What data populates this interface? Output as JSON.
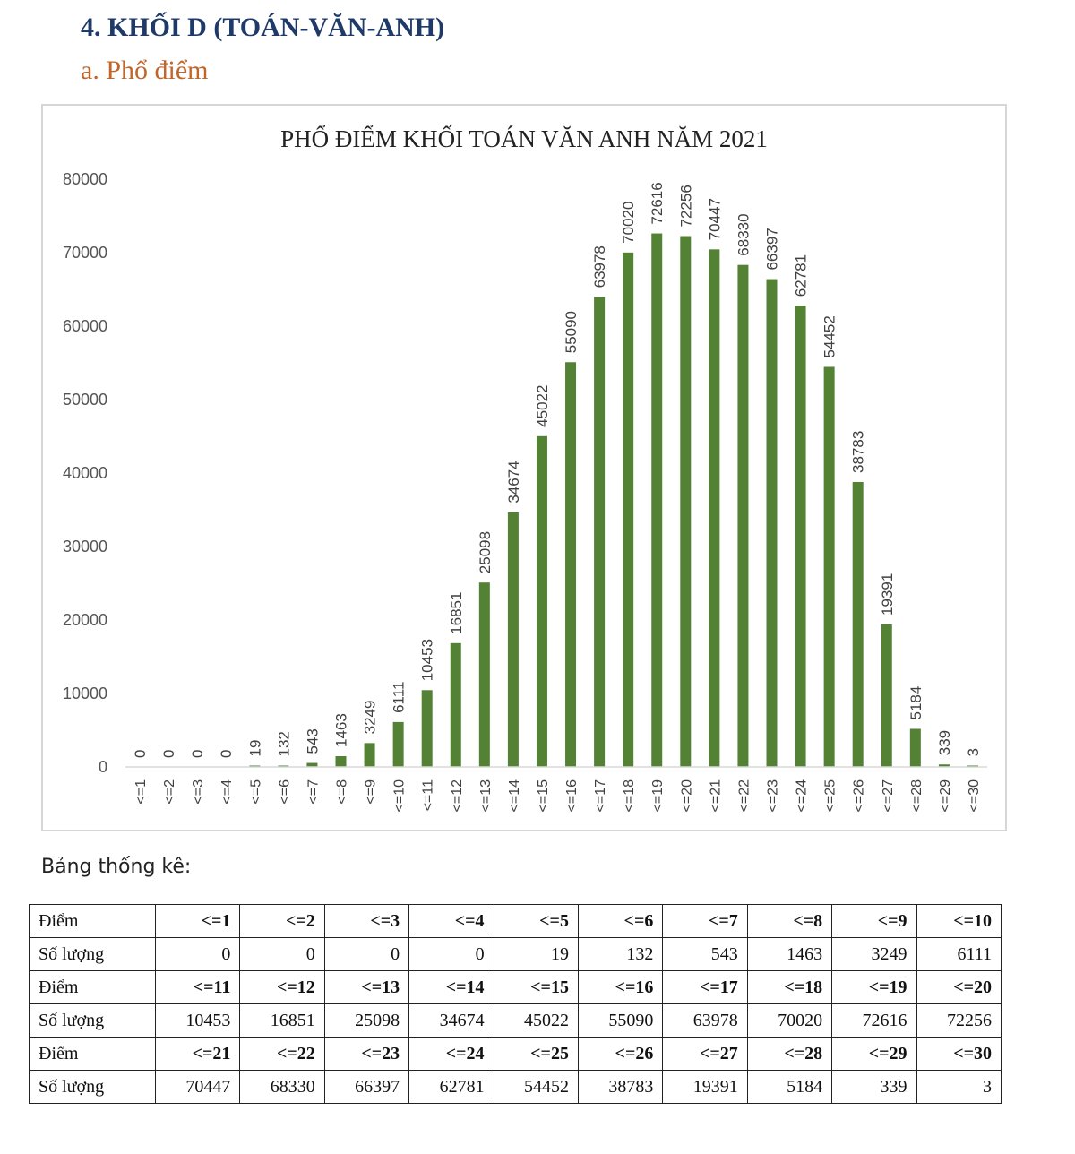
{
  "heading": {
    "section": "4.  KHỐI D (TOÁN-VĂN-ANH)",
    "subsection": "a.   Phổ điểm"
  },
  "chart_data": {
    "type": "bar",
    "title": "PHỔ ĐIỂM KHỐI TOÁN VĂN ANH NĂM 2021",
    "xlabel": "",
    "ylabel": "",
    "ylim": [
      0,
      80000
    ],
    "yticks": [
      0,
      10000,
      20000,
      30000,
      40000,
      50000,
      60000,
      70000,
      80000
    ],
    "grid": false,
    "legend": "none",
    "bar_color": "#548235",
    "categories": [
      "<=1",
      "<=2",
      "<=3",
      "<=4",
      "<=5",
      "<=6",
      "<=7",
      "<=8",
      "<=9",
      "<=10",
      "<=11",
      "<=12",
      "<=13",
      "<=14",
      "<=15",
      "<=16",
      "<=17",
      "<=18",
      "<=19",
      "<=20",
      "<=21",
      "<=22",
      "<=23",
      "<=24",
      "<=25",
      "<=26",
      "<=27",
      "<=28",
      "<=29",
      "<=30"
    ],
    "values": [
      0,
      0,
      0,
      0,
      19,
      132,
      543,
      1463,
      3249,
      6111,
      10453,
      16851,
      25098,
      34674,
      45022,
      55090,
      63978,
      70020,
      72616,
      72256,
      70447,
      68330,
      66397,
      62781,
      54452,
      38783,
      19391,
      5184,
      339,
      3
    ]
  },
  "table": {
    "caption": "Bảng thống kê:",
    "header_label": "Điểm",
    "count_label": "Số lượng",
    "rows": [
      {
        "scores": [
          "<=1",
          "<=2",
          "<=3",
          "<=4",
          "<=5",
          "<=6",
          "<=7",
          "<=8",
          "<=9",
          "<=10"
        ],
        "counts": [
          "0",
          "0",
          "0",
          "0",
          "19",
          "132",
          "543",
          "1463",
          "3249",
          "6111"
        ]
      },
      {
        "scores": [
          "<=11",
          "<=12",
          "<=13",
          "<=14",
          "<=15",
          "<=16",
          "<=17",
          "<=18",
          "<=19",
          "<=20"
        ],
        "counts": [
          "10453",
          "16851",
          "25098",
          "34674",
          "45022",
          "55090",
          "63978",
          "70020",
          "72616",
          "72256"
        ]
      },
      {
        "scores": [
          "<=21",
          "<=22",
          "<=23",
          "<=24",
          "<=25",
          "<=26",
          "<=27",
          "<=28",
          "<=29",
          "<=30"
        ],
        "counts": [
          "70447",
          "68330",
          "66397",
          "62781",
          "54452",
          "38783",
          "19391",
          "5184",
          "339",
          "3"
        ]
      }
    ]
  }
}
